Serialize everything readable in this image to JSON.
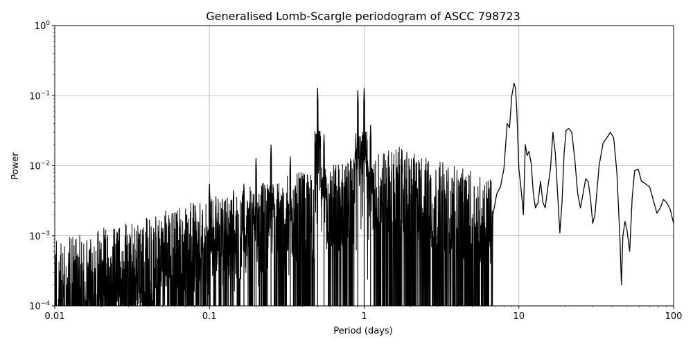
{
  "chart_data": {
    "type": "line",
    "title": "Generalised Lomb-Scargle periodogram of ASCC 798723",
    "xlabel": "Period (days)",
    "ylabel": "Power",
    "xscale": "log",
    "yscale": "log",
    "xlim": [
      0.01,
      100
    ],
    "ylim": [
      0.0001,
      1
    ],
    "grid": true,
    "line_color": "#000000",
    "x_ticks": [
      {
        "value": 0.01,
        "label": "0.01"
      },
      {
        "value": 0.1,
        "label": "0.1"
      },
      {
        "value": 1,
        "label": "1"
      },
      {
        "value": 10,
        "label": "10"
      },
      {
        "value": 100,
        "label": "100"
      }
    ],
    "y_ticks": [
      {
        "value": 0.0001,
        "base": "10",
        "exp": "−4"
      },
      {
        "value": 0.001,
        "base": "10",
        "exp": "−3"
      },
      {
        "value": 0.01,
        "base": "10",
        "exp": "−2"
      },
      {
        "value": 0.1,
        "base": "10",
        "exp": "−1"
      },
      {
        "value": 1,
        "base": "10",
        "exp": "0"
      }
    ],
    "peaks": [
      {
        "period": 0.017,
        "power": 0.00055
      },
      {
        "period": 0.05,
        "power": 0.0013
      },
      {
        "period": 0.1,
        "power": 0.0055
      },
      {
        "period": 0.11,
        "power": 0.0025
      },
      {
        "period": 0.125,
        "power": 0.0015
      },
      {
        "period": 0.143,
        "power": 0.0045
      },
      {
        "period": 0.167,
        "power": 0.0055
      },
      {
        "period": 0.2,
        "power": 0.013
      },
      {
        "period": 0.25,
        "power": 0.02
      },
      {
        "period": 0.333,
        "power": 0.0135
      },
      {
        "period": 0.5,
        "power": 0.13
      },
      {
        "period": 0.55,
        "power": 0.028
      },
      {
        "period": 0.91,
        "power": 0.12
      },
      {
        "period": 1.0,
        "power": 0.13
      },
      {
        "period": 1.1,
        "power": 0.038
      }
    ],
    "series": [
      {
        "x": [
          6.8,
          7.2,
          7.6,
          8.0,
          8.4,
          8.7,
          9.0,
          9.3,
          9.5,
          9.7,
          10.0,
          10.3,
          10.7,
          11.0,
          11.3,
          11.6,
          12.0,
          12.4,
          12.8,
          13.3,
          13.8,
          14.3,
          14.8,
          15.4,
          16.0,
          16.6,
          17.2,
          17.8,
          18.4,
          19.0,
          19.6,
          20.2,
          21.0,
          22.0,
          23.0,
          24.0,
          25.0,
          26.0,
          27.0,
          28.0,
          29.0,
          30.0,
          31.0,
          33.0,
          35.0,
          37.0,
          39.0,
          41.0,
          43.0,
          45.0,
          46.0,
          47.0,
          48.5,
          50.0,
          52.0,
          54.0,
          56.0,
          59.0,
          62.0,
          66.0,
          70.0,
          74.0,
          78.0,
          82.0,
          86.0,
          90.0,
          95.0,
          100.0
        ],
        "y": [
          0.002,
          0.004,
          0.005,
          0.009,
          0.04,
          0.035,
          0.1,
          0.15,
          0.13,
          0.06,
          0.009,
          0.005,
          0.002,
          0.02,
          0.014,
          0.016,
          0.011,
          0.004,
          0.0025,
          0.003,
          0.006,
          0.003,
          0.0025,
          0.005,
          0.009,
          0.03,
          0.015,
          0.004,
          0.0011,
          0.003,
          0.015,
          0.032,
          0.034,
          0.03,
          0.012,
          0.004,
          0.0025,
          0.004,
          0.0065,
          0.006,
          0.0035,
          0.0015,
          0.002,
          0.01,
          0.021,
          0.025,
          0.03,
          0.025,
          0.008,
          0.0009,
          0.0002,
          0.001,
          0.0016,
          0.0012,
          0.0006,
          0.0035,
          0.0085,
          0.009,
          0.006,
          0.0055,
          0.005,
          0.0032,
          0.0021,
          0.0025,
          0.0033,
          0.003,
          0.0024,
          0.0015
        ]
      }
    ]
  }
}
